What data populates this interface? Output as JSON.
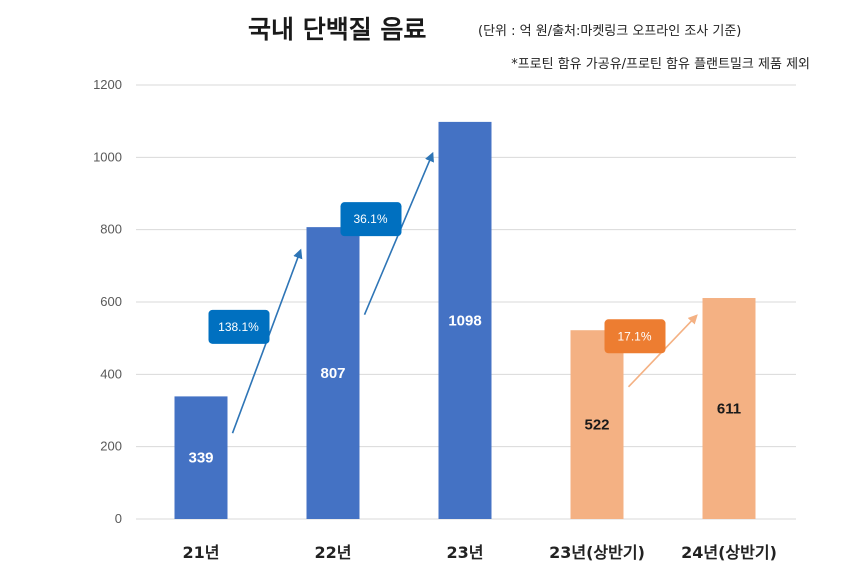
{
  "header": {
    "title": "국내 단백질 음료",
    "note": "(단위 : 억 원/출처:마켓링크 오프라인 조사 기준)",
    "subnote": "*프로틴 함유 가공유/프로틴 함유 플랜트밀크 제품 제외"
  },
  "colors": {
    "blue": "#4472C4",
    "orange": "#F4B183",
    "badge_blue": "#0070C0",
    "badge_orange": "#ED7D31",
    "arrow_blue": "#2E75B6",
    "arrow_orange": "#F4B183",
    "grid": "#D9D9D9"
  },
  "chart_data": {
    "type": "bar",
    "title": "국내 단백질 음료",
    "categories": [
      "21년",
      "22년",
      "23년",
      "23년(상반기)",
      "24년(상반기)"
    ],
    "values": [
      339,
      807,
      1098,
      522,
      611
    ],
    "value_labels": [
      "339",
      "807",
      "1098",
      "522",
      "611"
    ],
    "bar_colors": [
      "blue",
      "blue",
      "blue",
      "orange",
      "orange"
    ],
    "ylim": [
      0,
      1200
    ],
    "yticks": [
      0,
      200,
      400,
      600,
      800,
      1000,
      1200
    ],
    "grid": true,
    "annotations": [
      {
        "text": "138.1%",
        "from": 0,
        "to": 1,
        "color": "blue"
      },
      {
        "text": "36.1%",
        "from": 1,
        "to": 2,
        "color": "blue"
      },
      {
        "text": "17.1%",
        "from": 3,
        "to": 4,
        "color": "orange"
      }
    ]
  }
}
